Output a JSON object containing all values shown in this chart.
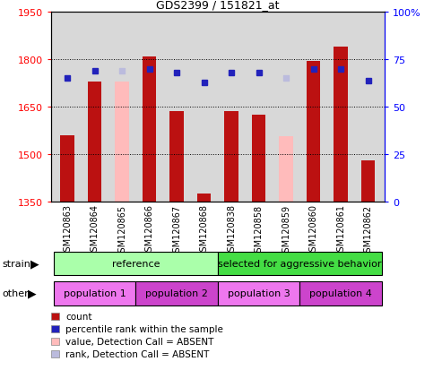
{
  "title": "GDS2399 / 151821_at",
  "samples": [
    "GSM120863",
    "GSM120864",
    "GSM120865",
    "GSM120866",
    "GSM120867",
    "GSM120868",
    "GSM120838",
    "GSM120858",
    "GSM120859",
    "GSM120860",
    "GSM120861",
    "GSM120862"
  ],
  "counts": [
    1560,
    1730,
    null,
    1810,
    1635,
    1375,
    1635,
    1625,
    null,
    1795,
    1840,
    1480
  ],
  "counts_absent": [
    null,
    null,
    1730,
    null,
    null,
    null,
    null,
    null,
    1555,
    null,
    null,
    null
  ],
  "percentile_ranks": [
    65,
    69,
    null,
    70,
    68,
    63,
    68,
    68,
    null,
    70,
    70,
    64
  ],
  "percentile_ranks_absent": [
    null,
    null,
    69,
    null,
    null,
    null,
    null,
    null,
    65,
    null,
    null,
    null
  ],
  "y_min": 1350,
  "y_max": 1950,
  "y_ticks": [
    1350,
    1500,
    1650,
    1800,
    1950
  ],
  "y2_ticks": [
    0,
    25,
    50,
    75,
    100
  ],
  "bar_color": "#bb1111",
  "bar_color_absent": "#ffbbbb",
  "dot_color": "#2222bb",
  "dot_color_absent": "#bbbbdd",
  "strain_groups": [
    {
      "label": "reference",
      "start": 0,
      "end": 5,
      "color": "#aaffaa"
    },
    {
      "label": "selected for aggressive behavior",
      "start": 6,
      "end": 11,
      "color": "#44dd44"
    }
  ],
  "other_groups": [
    {
      "label": "population 1",
      "start": 0,
      "end": 2,
      "color": "#ee77ee"
    },
    {
      "label": "population 2",
      "start": 3,
      "end": 5,
      "color": "#cc44cc"
    },
    {
      "label": "population 3",
      "start": 6,
      "end": 8,
      "color": "#ee77ee"
    },
    {
      "label": "population 4",
      "start": 9,
      "end": 11,
      "color": "#cc44cc"
    }
  ],
  "legend_items": [
    {
      "label": "count",
      "color": "#bb1111"
    },
    {
      "label": "percentile rank within the sample",
      "color": "#2222bb"
    },
    {
      "label": "value, Detection Call = ABSENT",
      "color": "#ffbbbb"
    },
    {
      "label": "rank, Detection Call = ABSENT",
      "color": "#bbbbdd"
    }
  ],
  "plot_bg": "#d8d8d8",
  "bar_width": 0.5
}
